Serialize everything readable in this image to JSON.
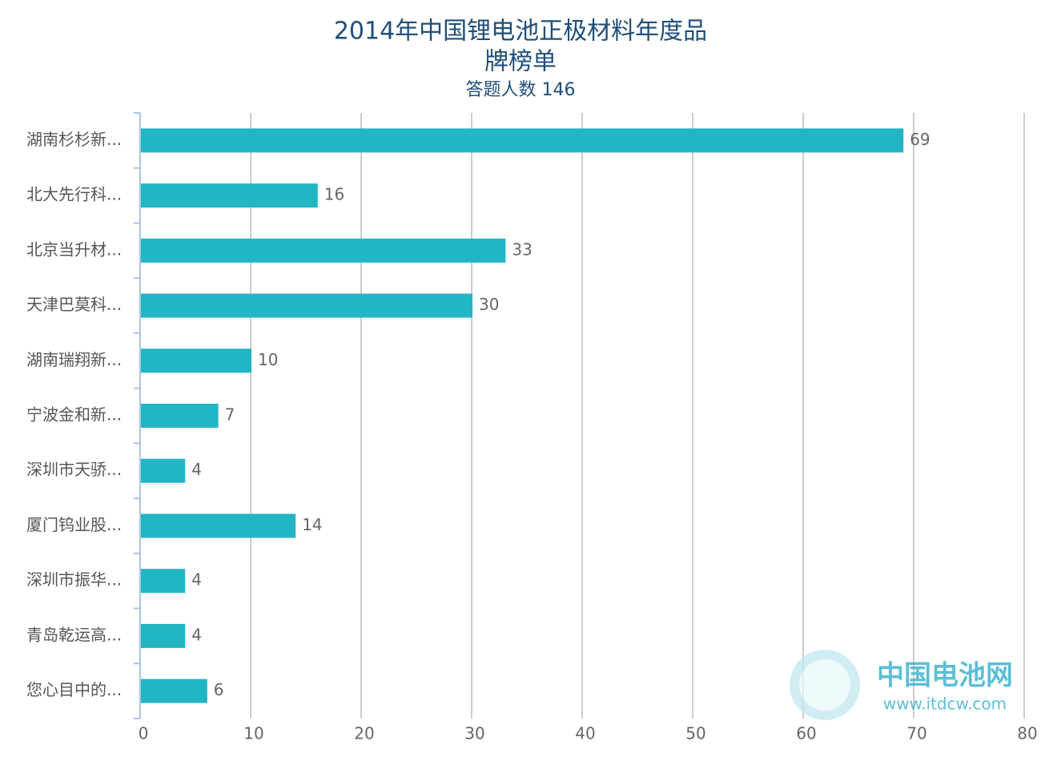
{
  "chart_data": {
    "type": "bar",
    "orientation": "horizontal",
    "title": [
      "2014年中国锂电池正极材料年度品",
      "牌榜单"
    ],
    "subtitle": "答题人数 146",
    "categories": [
      "湖南杉杉新...",
      "北大先行科...",
      "北京当升材...",
      "天津巴莫科...",
      "湖南瑞翔新...",
      "宁波金和新...",
      "深圳市天骄...",
      "厦门钨业股...",
      "深圳市振华...",
      "青岛乾运高...",
      "您心目中的..."
    ],
    "values": [
      69,
      16,
      33,
      30,
      10,
      7,
      4,
      14,
      4,
      4,
      6
    ],
    "color": "#22b5c4",
    "xlim": [
      0,
      80
    ],
    "xticks": [
      0,
      10,
      20,
      30,
      40,
      50,
      60,
      70,
      80
    ],
    "grid": true
  },
  "watermark": {
    "name": "中国电池网",
    "url": "www.itdcw.com"
  }
}
